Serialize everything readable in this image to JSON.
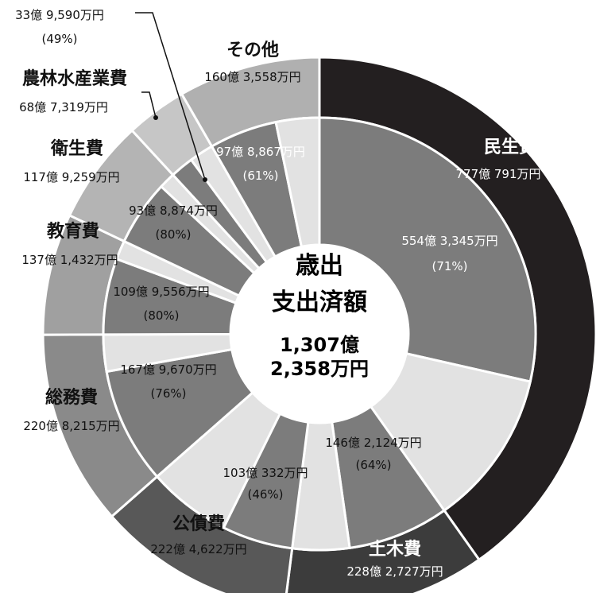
{
  "chart_data": {
    "type": "pie",
    "center": {
      "title_line1": "歳出",
      "title_line2": "支出済額",
      "total_line1": "1,307億",
      "total_line2": "2,358万円"
    },
    "categories": [
      {
        "name": "民生費",
        "amount": "777億 791万円",
        "value": 777.0791,
        "inner_amount": "554億 3,345万円",
        "inner_percent": "(71%)",
        "percent": 71,
        "color": "#231f20"
      },
      {
        "name": "土木費",
        "amount": "228億 2,727万円",
        "value": 228.2727,
        "inner_amount": "146億 2,124万円",
        "inner_percent": "(64%)",
        "percent": 64,
        "color": "#3c3c3c"
      },
      {
        "name": "公債費",
        "amount": "222億 4,622万円",
        "value": 222.4622,
        "inner_amount": "103億 332万円",
        "inner_percent": "(46%)",
        "percent": 46,
        "color": "#585858"
      },
      {
        "name": "総務費",
        "amount": "220億 8,215万円",
        "value": 220.8215,
        "inner_amount": "167億 9,670万円",
        "inner_percent": "(76%)",
        "percent": 76,
        "color": "#8a8a8a"
      },
      {
        "name": "教育費",
        "amount": "137億 1,432万円",
        "value": 137.1432,
        "inner_amount": "109億 9,556万円",
        "inner_percent": "(80%)",
        "percent": 80,
        "color": "#a0a0a0"
      },
      {
        "name": "衛生費",
        "amount": "117億 9,259万円",
        "value": 117.9259,
        "inner_amount": "93億 8,874万円",
        "inner_percent": "(80%)",
        "percent": 80,
        "color": "#b4b4b4"
      },
      {
        "name": "農林水産業費",
        "amount": "68億 7,319万円",
        "value": 68.7319,
        "inner_amount": "33億 9,590万円",
        "inner_percent": "(49%)",
        "percent": 49,
        "color": "#c6c6c6"
      },
      {
        "name": "その他",
        "amount": "160億 3,558万円",
        "value": 160.3558,
        "inner_amount": "97億 8,867万円",
        "inner_percent": "(61%)",
        "percent": 61,
        "color": "#b0b0b0"
      }
    ],
    "colors": {
      "inner_filled": "#7c7c7c",
      "inner_rest": "#e2e2e2",
      "divider": "#ffffff",
      "label_dark_bg": "#ffffff",
      "label_light_bg": "#111111"
    }
  }
}
